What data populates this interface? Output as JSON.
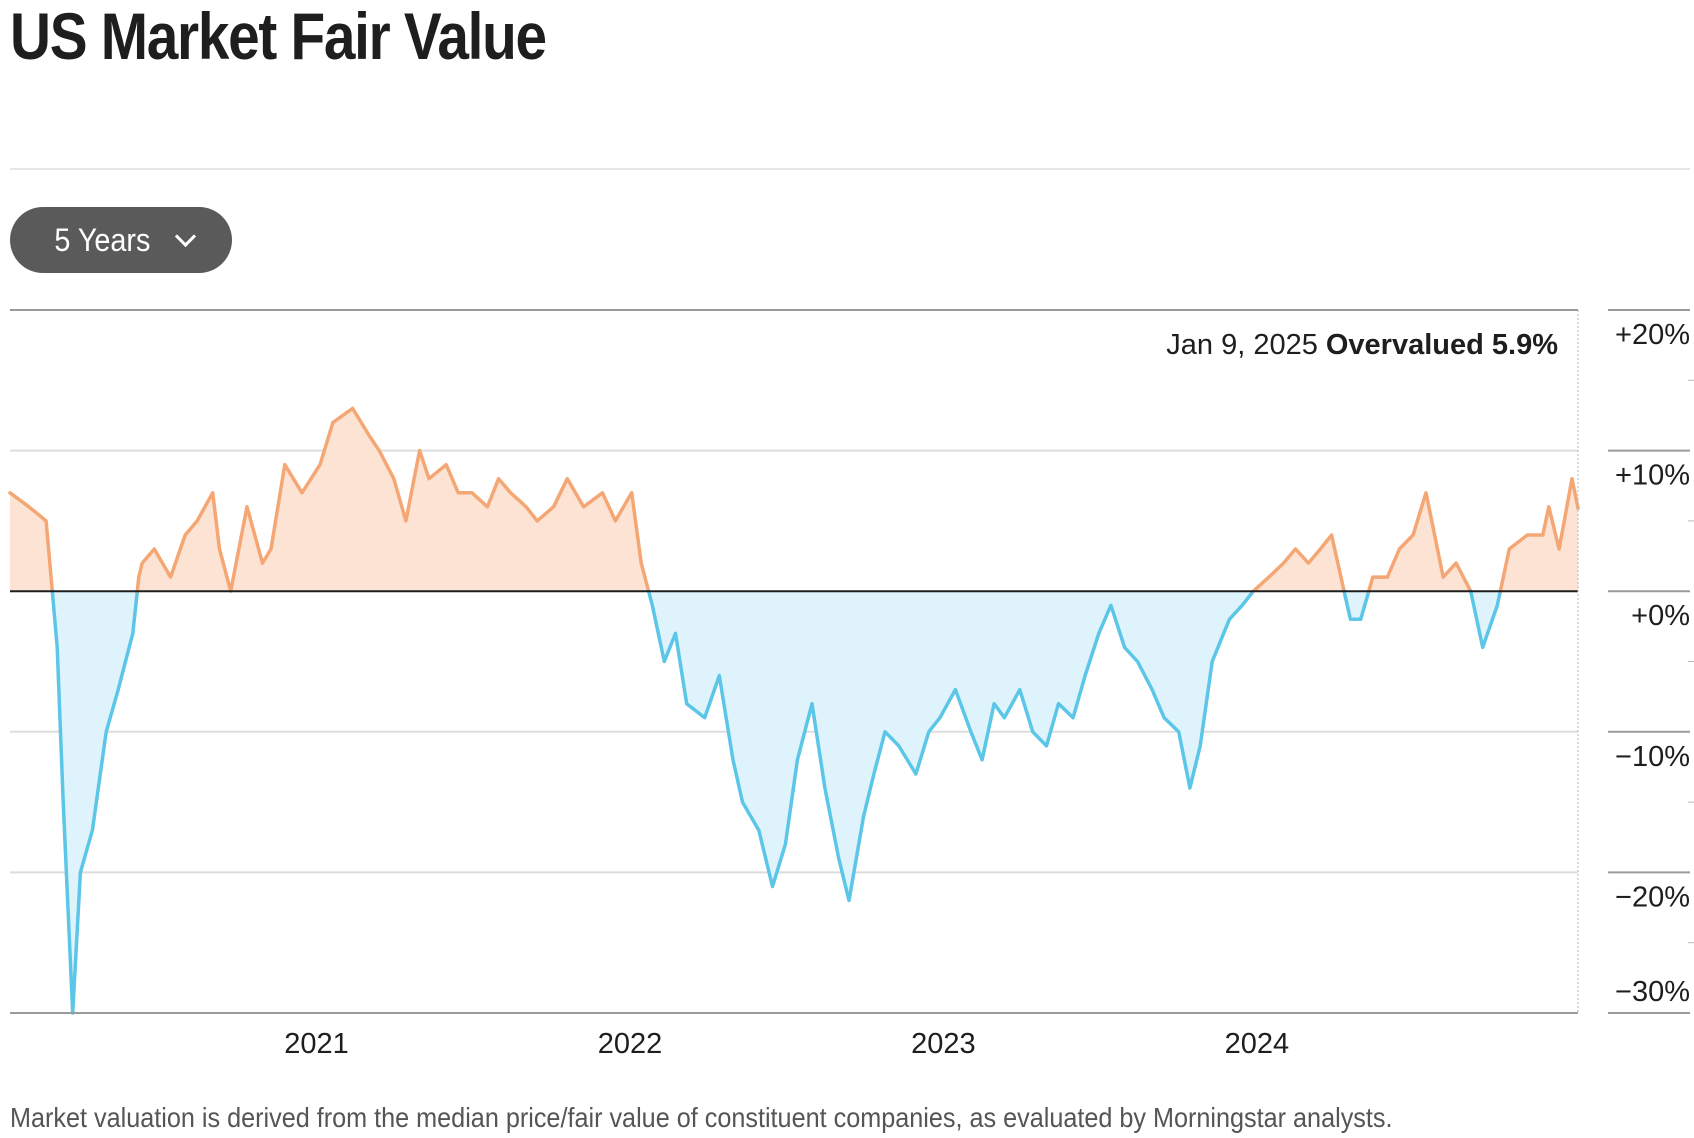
{
  "title": "US Market Fair Value",
  "period_selector": {
    "label": "5 Years",
    "icon": "chevron-down-icon"
  },
  "readout": {
    "date": "Jan 9, 2025",
    "status": "Overvalued 5.9%"
  },
  "footnote": "Market valuation is derived from the median price/fair value of constituent companies, as evaluated by Morningstar analysts.",
  "colors": {
    "overvalued": "#f4a774",
    "overvalued_fill": "#fde3d4",
    "undervalued": "#5cc6e8",
    "undervalued_fill": "#def3fb",
    "readout_status": "#b24a0c"
  },
  "chart_data": {
    "type": "area",
    "title": "US Market Fair Value",
    "xlabel": "",
    "ylabel": "",
    "x_ticks": [
      "2021",
      "2022",
      "2023",
      "2024"
    ],
    "y_ticks": [
      "+20%",
      "+10%",
      "+0%",
      "−10%",
      "−20%",
      "−30%"
    ],
    "xlim": [
      "2020-01-10",
      "2025-01-09"
    ],
    "ylim": [
      -30,
      20
    ],
    "baseline": 0,
    "grid": true,
    "series": [
      {
        "x": [
          "2020-01-10",
          "2020-02-01",
          "2020-02-21",
          "2020-03-05",
          "2020-03-12",
          "2020-03-23",
          "2020-04-01",
          "2020-04-15",
          "2020-05-01",
          "2020-05-15",
          "2020-06-01",
          "2020-06-08",
          "2020-06-12",
          "2020-06-26",
          "2020-07-15",
          "2020-08-01",
          "2020-08-15",
          "2020-09-02",
          "2020-09-10",
          "2020-09-23",
          "2020-10-12",
          "2020-10-30",
          "2020-11-09",
          "2020-11-25",
          "2020-12-15",
          "2021-01-05",
          "2021-01-20",
          "2021-02-12",
          "2021-03-04",
          "2021-03-15",
          "2021-04-01",
          "2021-04-15",
          "2021-05-01",
          "2021-05-12",
          "2021-06-01",
          "2021-06-15",
          "2021-07-01",
          "2021-07-19",
          "2021-08-01",
          "2021-08-15",
          "2021-09-02",
          "2021-09-15",
          "2021-10-04",
          "2021-10-20",
          "2021-11-08",
          "2021-11-30",
          "2021-12-15",
          "2022-01-03",
          "2022-01-14",
          "2022-01-27",
          "2022-02-10",
          "2022-02-23",
          "2022-03-08",
          "2022-03-29",
          "2022-04-15",
          "2022-05-01",
          "2022-05-12",
          "2022-05-31",
          "2022-06-16",
          "2022-07-01",
          "2022-07-15",
          "2022-08-01",
          "2022-08-16",
          "2022-09-01",
          "2022-09-13",
          "2022-09-30",
          "2022-10-12",
          "2022-10-25",
          "2022-11-10",
          "2022-11-30",
          "2022-12-15",
          "2022-12-28",
          "2023-01-15",
          "2023-02-02",
          "2023-02-15",
          "2023-03-01",
          "2023-03-13",
          "2023-03-31",
          "2023-04-15",
          "2023-05-01",
          "2023-05-15",
          "2023-06-01",
          "2023-06-15",
          "2023-07-01",
          "2023-07-15",
          "2023-07-31",
          "2023-08-15",
          "2023-09-01",
          "2023-09-15",
          "2023-10-02",
          "2023-10-15",
          "2023-10-27",
          "2023-11-10",
          "2023-11-30",
          "2023-12-15",
          "2023-12-28",
          "2024-01-15",
          "2024-02-01",
          "2024-02-15",
          "2024-03-01",
          "2024-03-15",
          "2024-03-28",
          "2024-04-19",
          "2024-05-01",
          "2024-05-15",
          "2024-06-01",
          "2024-06-15",
          "2024-07-01",
          "2024-07-16",
          "2024-08-05",
          "2024-08-20",
          "2024-09-06",
          "2024-09-20",
          "2024-10-07",
          "2024-10-21",
          "2024-11-11",
          "2024-11-29",
          "2024-12-06",
          "2024-12-18",
          "2025-01-02",
          "2025-01-09"
        ],
        "y": [
          7,
          6,
          5,
          -4,
          -15,
          -30,
          -20,
          -17,
          -10,
          -7,
          -3,
          1,
          2,
          3,
          1,
          4,
          5,
          7,
          3,
          0,
          6,
          2,
          3,
          9,
          7,
          9,
          12,
          13,
          11,
          10,
          8,
          5,
          10,
          8,
          9,
          7,
          7,
          6,
          8,
          7,
          6,
          5,
          6,
          8,
          6,
          7,
          5,
          7,
          2,
          -1,
          -5,
          -3,
          -8,
          -9,
          -6,
          -12,
          -15,
          -17,
          -21,
          -18,
          -12,
          -8,
          -14,
          -19,
          -22,
          -16,
          -13,
          -10,
          -11,
          -13,
          -10,
          -9,
          -7,
          -10,
          -12,
          -8,
          -9,
          -7,
          -10,
          -11,
          -8,
          -9,
          -6,
          -3,
          -1,
          -4,
          -5,
          -7,
          -9,
          -10,
          -14,
          -11,
          -5,
          -2,
          -1,
          0,
          1,
          2,
          3,
          2,
          3,
          4,
          -2,
          -2,
          1,
          1,
          3,
          4,
          7,
          1,
          2,
          0,
          -4,
          -1,
          3,
          4,
          4,
          6,
          3,
          8,
          5.9
        ]
      }
    ]
  }
}
